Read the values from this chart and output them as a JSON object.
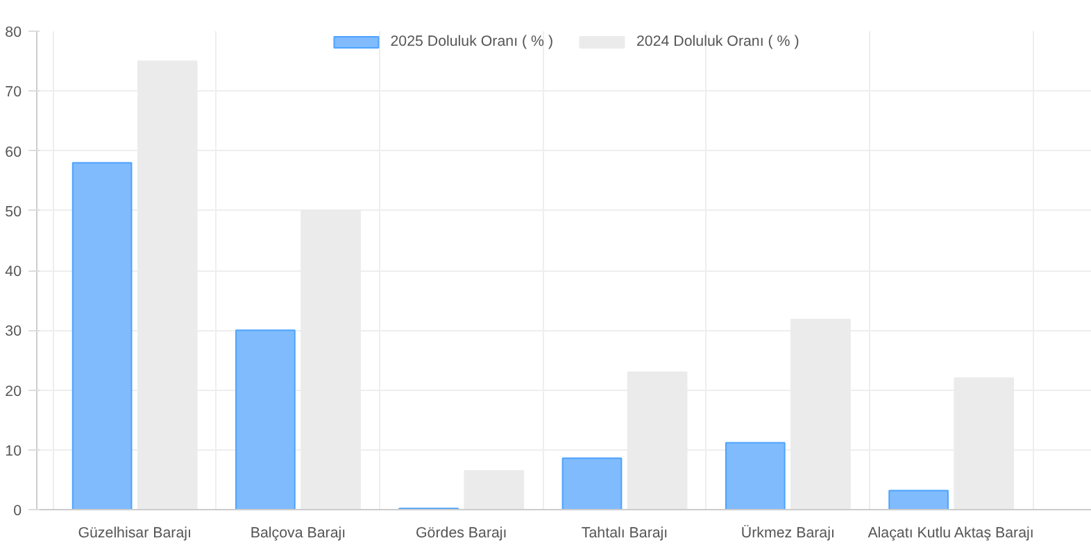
{
  "chart_data": {
    "type": "bar",
    "categories": [
      "Güzelhisar Barajı",
      "Balçova Barajı",
      "Gördes Barajı",
      "Tahtalı Barajı",
      "Ürkmez Barajı",
      "Alaçatı Kutlu Aktaş Barajı"
    ],
    "series": [
      {
        "name": "2025 Doluluk Oranı ( % )",
        "color": "#80bbfd",
        "values": [
          58,
          30,
          0.2,
          8.6,
          11.2,
          3.2
        ]
      },
      {
        "name": "2024 Doluluk Oranı ( % )",
        "color": "#ebebeb",
        "values": [
          75,
          50,
          6.5,
          23,
          31.8,
          22
        ]
      }
    ],
    "ylim": [
      0,
      80
    ],
    "yticks": [
      0,
      10,
      20,
      30,
      40,
      50,
      60,
      70,
      80
    ],
    "grid": true,
    "legend": "top"
  }
}
